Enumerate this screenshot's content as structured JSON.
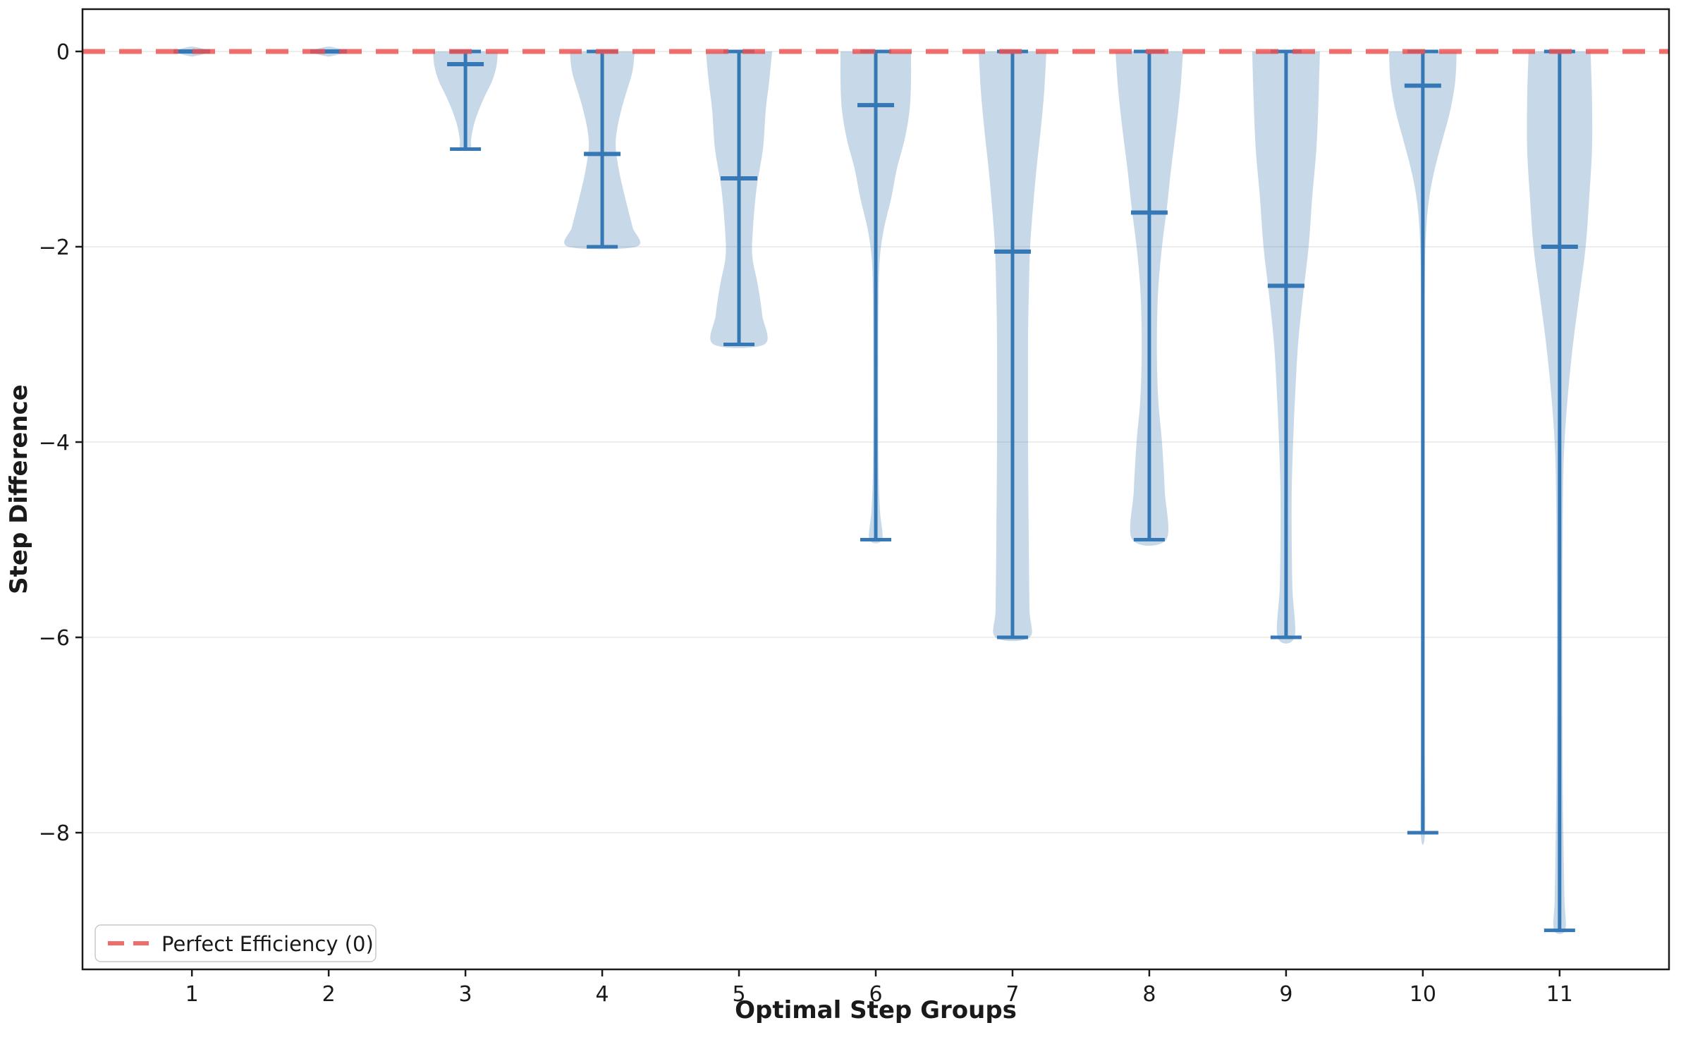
{
  "chart_data": {
    "type": "violin",
    "title": "",
    "xlabel": "Optimal Step Groups",
    "ylabel": "Step Difference",
    "x_categories": [
      "1",
      "2",
      "3",
      "4",
      "5",
      "6",
      "7",
      "8",
      "9",
      "10",
      "11"
    ],
    "yticks": [
      0,
      -2,
      -4,
      -6,
      -8
    ],
    "yticklabels": [
      "0",
      "−2",
      "−4",
      "−6",
      "−8"
    ],
    "xlim": [
      0.2,
      11.8
    ],
    "ylim": [
      -9.4,
      0.433
    ],
    "grid": {
      "axis": "y",
      "color": "#e7e7e7",
      "on": true
    },
    "legend": {
      "position": "lower-left",
      "label": "Perfect Efficiency (0)"
    },
    "reference_line": {
      "value": 0,
      "label": "Perfect Efficiency (0)",
      "style": "dashed",
      "color": "#ed5150"
    },
    "violin_fill_color": "#4682b4",
    "violin_fill_opacity": 0.3,
    "line_color": "#3578b5",
    "series": [
      {
        "group": "1",
        "min": 0,
        "max": 0,
        "median": 0,
        "profile": [
          [
            0.05,
            0.05
          ],
          [
            0.02,
            0.4
          ],
          [
            0,
            0.44
          ],
          [
            -0.02,
            0.4
          ],
          [
            -0.05,
            0.05
          ]
        ]
      },
      {
        "group": "2",
        "min": 0,
        "max": 0,
        "median": 0,
        "profile": [
          [
            0.05,
            0.05
          ],
          [
            0.02,
            0.4
          ],
          [
            0,
            0.44
          ],
          [
            -0.02,
            0.4
          ],
          [
            -0.05,
            0.05
          ]
        ]
      },
      {
        "group": "3",
        "min": -1,
        "max": 0,
        "median": -0.13,
        "profile": [
          [
            0,
            0.92
          ],
          [
            -0.15,
            0.88
          ],
          [
            -0.3,
            0.76
          ],
          [
            -0.45,
            0.56
          ],
          [
            -0.6,
            0.38
          ],
          [
            -0.75,
            0.24
          ],
          [
            -0.9,
            0.16
          ],
          [
            -1,
            0.14
          ]
        ]
      },
      {
        "group": "4",
        "min": -2,
        "max": 0,
        "median": -1.05,
        "profile": [
          [
            0,
            0.92
          ],
          [
            -0.2,
            0.86
          ],
          [
            -0.4,
            0.7
          ],
          [
            -0.6,
            0.54
          ],
          [
            -0.8,
            0.42
          ],
          [
            -0.95,
            0.38
          ],
          [
            -1.1,
            0.42
          ],
          [
            -1.3,
            0.52
          ],
          [
            -1.6,
            0.72
          ],
          [
            -1.8,
            0.86
          ],
          [
            -2,
            0.96
          ]
        ]
      },
      {
        "group": "5",
        "min": -3,
        "max": 0,
        "median": -1.3,
        "profile": [
          [
            0,
            0.94
          ],
          [
            -0.3,
            0.86
          ],
          [
            -0.6,
            0.76
          ],
          [
            -1,
            0.68
          ],
          [
            -1.4,
            0.5
          ],
          [
            -1.8,
            0.4
          ],
          [
            -2.1,
            0.38
          ],
          [
            -2.4,
            0.54
          ],
          [
            -2.7,
            0.66
          ],
          [
            -3,
            0.72
          ]
        ]
      },
      {
        "group": "6",
        "min": -5,
        "max": 0,
        "median": -0.55,
        "profile": [
          [
            0,
            1.0
          ],
          [
            -0.3,
            1.0
          ],
          [
            -0.6,
            0.96
          ],
          [
            -0.9,
            0.82
          ],
          [
            -1.2,
            0.6
          ],
          [
            -1.5,
            0.44
          ],
          [
            -1.8,
            0.24
          ],
          [
            -2.1,
            0.12
          ],
          [
            -2.5,
            0.08
          ],
          [
            -3.5,
            0.07
          ],
          [
            -4.3,
            0.08
          ],
          [
            -4.7,
            0.12
          ],
          [
            -5,
            0.18
          ]
        ]
      },
      {
        "group": "7",
        "min": -6,
        "max": 0,
        "median": -2.05,
        "profile": [
          [
            0,
            0.96
          ],
          [
            -0.4,
            0.9
          ],
          [
            -0.8,
            0.8
          ],
          [
            -1.2,
            0.68
          ],
          [
            -1.6,
            0.58
          ],
          [
            -2,
            0.5
          ],
          [
            -2.5,
            0.46
          ],
          [
            -3,
            0.44
          ],
          [
            -4,
            0.44
          ],
          [
            -5,
            0.46
          ],
          [
            -5.7,
            0.48
          ],
          [
            -6,
            0.48
          ]
        ]
      },
      {
        "group": "8",
        "min": -5,
        "max": 0,
        "median": -1.65,
        "profile": [
          [
            0,
            0.96
          ],
          [
            -0.4,
            0.88
          ],
          [
            -0.8,
            0.76
          ],
          [
            -1.2,
            0.62
          ],
          [
            -1.6,
            0.5
          ],
          [
            -2,
            0.36
          ],
          [
            -2.4,
            0.26
          ],
          [
            -2.8,
            0.22
          ],
          [
            -3.2,
            0.22
          ],
          [
            -3.6,
            0.26
          ],
          [
            -4,
            0.36
          ],
          [
            -4.5,
            0.44
          ],
          [
            -5,
            0.48
          ]
        ]
      },
      {
        "group": "9",
        "min": -6,
        "max": 0,
        "median": -2.4,
        "profile": [
          [
            0,
            0.96
          ],
          [
            -0.5,
            0.92
          ],
          [
            -1,
            0.86
          ],
          [
            -1.5,
            0.74
          ],
          [
            -2,
            0.64
          ],
          [
            -2.5,
            0.48
          ],
          [
            -3,
            0.34
          ],
          [
            -3.5,
            0.26
          ],
          [
            -4,
            0.2
          ],
          [
            -4.5,
            0.16
          ],
          [
            -5,
            0.16
          ],
          [
            -5.5,
            0.18
          ],
          [
            -6,
            0.24
          ]
        ]
      },
      {
        "group": "10",
        "min": -8,
        "max": 0,
        "median": -0.35,
        "profile": [
          [
            0,
            0.96
          ],
          [
            -0.3,
            0.92
          ],
          [
            -0.6,
            0.78
          ],
          [
            -0.9,
            0.56
          ],
          [
            -1.2,
            0.34
          ],
          [
            -1.5,
            0.18
          ],
          [
            -1.8,
            0.1
          ],
          [
            -2.2,
            0.06
          ],
          [
            -3,
            0.05
          ],
          [
            -5,
            0.05
          ],
          [
            -7,
            0.05
          ],
          [
            -8,
            0.06
          ]
        ]
      },
      {
        "group": "11",
        "min": -9,
        "max": 0,
        "median": -2.0,
        "profile": [
          [
            0,
            0.88
          ],
          [
            -0.5,
            0.92
          ],
          [
            -1,
            0.92
          ],
          [
            -1.5,
            0.84
          ],
          [
            -2,
            0.74
          ],
          [
            -2.5,
            0.56
          ],
          [
            -3,
            0.38
          ],
          [
            -3.5,
            0.24
          ],
          [
            -4,
            0.14
          ],
          [
            -4.5,
            0.1
          ],
          [
            -5.5,
            0.08
          ],
          [
            -6.5,
            0.08
          ],
          [
            -7.5,
            0.09
          ],
          [
            -8.3,
            0.12
          ],
          [
            -8.7,
            0.14
          ],
          [
            -9,
            0.16
          ]
        ]
      }
    ]
  },
  "colors": {
    "spine": "#1a1a1a",
    "tick_label": "#1a1a1a",
    "grid": "#e7e7e7",
    "legend_border": "#c9c9c9"
  }
}
